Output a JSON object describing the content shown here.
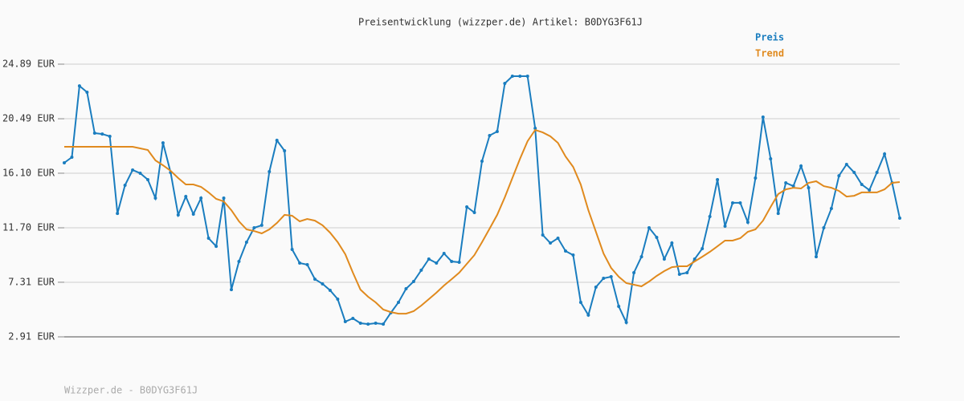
{
  "chart_data": {
    "type": "line",
    "title": "Preisentwicklung (wizzper.de) Artikel: B0DYG3F61J",
    "footer": "Wizzper.de - B0DYG3F61J",
    "legend": "top-right",
    "grid": true,
    "ylim": [
      2.91,
      24.89
    ],
    "yticks": [
      {
        "value": 2.91,
        "label": "2.91 EUR"
      },
      {
        "value": 7.31,
        "label": "7.31 EUR"
      },
      {
        "value": 11.7,
        "label": "11.70 EUR"
      },
      {
        "value": 16.1,
        "label": "16.10 EUR"
      },
      {
        "value": 20.49,
        "label": "20.49 EUR"
      },
      {
        "value": 24.89,
        "label": "24.89 EUR"
      }
    ],
    "series": [
      {
        "name": "Preis",
        "color": "#1a7dbf",
        "markers": true,
        "values": [
          16.94,
          17.39,
          23.14,
          22.63,
          19.33,
          19.26,
          19.07,
          12.86,
          15.13,
          16.36,
          16.1,
          15.58,
          14.09,
          18.55,
          16.16,
          12.74,
          14.22,
          12.8,
          14.09,
          10.86,
          10.21,
          14.09,
          6.72,
          8.99,
          10.54,
          11.7,
          11.9,
          16.23,
          18.75,
          17.91,
          9.96,
          8.86,
          8.73,
          7.56,
          7.18,
          6.66,
          5.95,
          4.14,
          4.4,
          4.01,
          3.94,
          4.01,
          3.94,
          4.85,
          5.69,
          6.79,
          7.37,
          8.28,
          9.18,
          8.86,
          9.63,
          8.99,
          8.92,
          13.38,
          12.93,
          17.07,
          19.14,
          19.46,
          23.34,
          23.92,
          23.92,
          23.92,
          19.72,
          11.12,
          10.47,
          10.86,
          9.83,
          9.5,
          5.69,
          4.66,
          6.92,
          7.63,
          7.76,
          5.37,
          4.07,
          8.08,
          9.37,
          11.7,
          10.93,
          9.18,
          10.47,
          7.95,
          8.08,
          9.18,
          10.02,
          12.61,
          15.58,
          11.83,
          13.71,
          13.71,
          12.15,
          15.71,
          20.62,
          17.26,
          12.86,
          15.32,
          15.06,
          16.68,
          14.93,
          9.37,
          11.7,
          13.25,
          15.9,
          16.81,
          16.16,
          15.19,
          14.74,
          16.16,
          17.65,
          15.32,
          12.48
        ]
      },
      {
        "name": "Trend",
        "color": "#e08a1e",
        "markers": false,
        "values": [
          18.23,
          18.23,
          18.23,
          18.23,
          18.23,
          18.23,
          18.23,
          18.23,
          18.23,
          18.23,
          18.1,
          17.97,
          17.13,
          16.74,
          16.29,
          15.71,
          15.19,
          15.19,
          15.0,
          14.55,
          14.03,
          13.83,
          13.12,
          12.22,
          11.57,
          11.44,
          11.25,
          11.57,
          12.09,
          12.74,
          12.67,
          12.22,
          12.41,
          12.28,
          11.9,
          11.31,
          10.54,
          9.57,
          8.08,
          6.72,
          6.14,
          5.69,
          5.11,
          4.91,
          4.78,
          4.78,
          4.98,
          5.43,
          5.95,
          6.47,
          7.05,
          7.56,
          8.08,
          8.79,
          9.5,
          10.54,
          11.64,
          12.74,
          14.16,
          15.71,
          17.26,
          18.68,
          19.59,
          19.39,
          19.07,
          18.55,
          17.45,
          16.61,
          15.19,
          13.12,
          11.38,
          9.63,
          8.47,
          7.76,
          7.24,
          7.11,
          6.98,
          7.37,
          7.82,
          8.21,
          8.53,
          8.6,
          8.6,
          8.99,
          9.37,
          9.76,
          10.21,
          10.67,
          10.67,
          10.86,
          11.38,
          11.57,
          12.28,
          13.38,
          14.42,
          14.8,
          14.93,
          14.87,
          15.32,
          15.45,
          15.06,
          14.93,
          14.67,
          14.22,
          14.28,
          14.55,
          14.55,
          14.55,
          14.8,
          15.32,
          15.39
        ]
      }
    ]
  }
}
